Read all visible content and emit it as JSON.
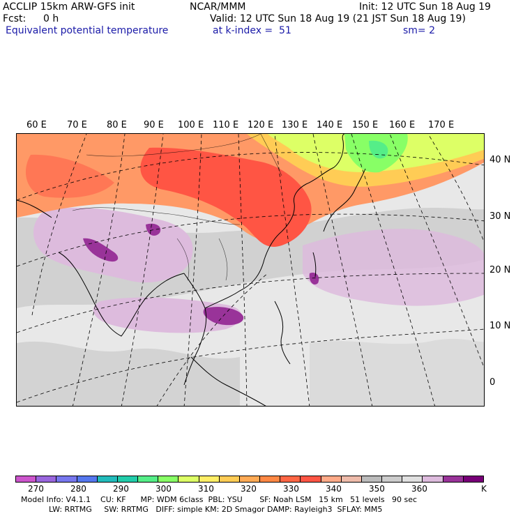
{
  "header": {
    "model": "ACCLIP 15km ARW-GFS init",
    "center": "NCAR/MMM",
    "init": "Init: 12 UTC Sun 18 Aug 19",
    "fcst_label": "Fcst:",
    "fcst_value": "0 h",
    "valid": "Valid: 12 UTC Sun 18 Aug 19 (21 JST Sun 18 Aug 19)",
    "field": "Equivalent potential temperature",
    "level": "at k-index =  51",
    "smooth": "sm= 2"
  },
  "map": {
    "lon_labels": [
      "60 E",
      "70 E",
      "80 E",
      "90 E",
      "100 E",
      "110 E",
      "120 E",
      "130 E",
      "140 E",
      "150 E",
      "160 E",
      "170 E"
    ],
    "lat_labels": [
      "40 N",
      "30 N",
      "20 N",
      "10 N",
      "0"
    ]
  },
  "colorbar": {
    "colors": [
      "#cc55cc",
      "#9966dd",
      "#7777ee",
      "#5577ee",
      "#22bbbb",
      "#22ccaa",
      "#55ee88",
      "#88ff66",
      "#ddff66",
      "#ffee66",
      "#ffcc55",
      "#ffaa55",
      "#ff8844",
      "#ff6644",
      "#ff5544",
      "#ffaa88",
      "#eebbaa",
      "#bbbbbb",
      "#cccccc",
      "#e0e0e0",
      "#ddbbdd",
      "#993399",
      "#770077"
    ],
    "tick_labels": [
      "270",
      "280",
      "290",
      "300",
      "310",
      "320",
      "330",
      "340",
      "350",
      "360",
      "K"
    ]
  },
  "footer": {
    "line1": "Model Info: V4.1.1    CU: KF      MP: WDM 6class  PBL: YSU       SF: Noah LSM   15 km   51 levels   90 sec",
    "line2": "LW: RRTMG     SW: RRTMG   DIFF: simple KM: 2D Smagor DAMP: Rayleigh3  SFLAY: MM5"
  }
}
